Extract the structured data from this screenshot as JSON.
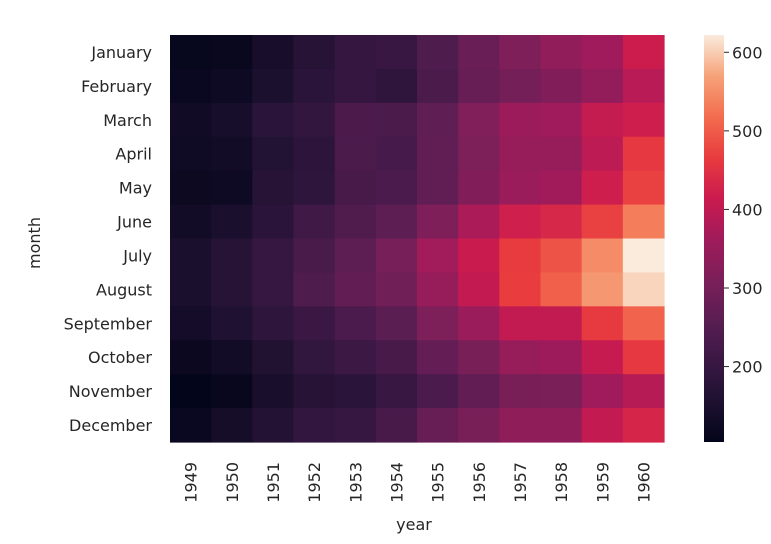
{
  "chart_data": {
    "type": "heatmap",
    "title": "",
    "xlabel": "year",
    "ylabel": "month",
    "x_categories": [
      "1949",
      "1950",
      "1951",
      "1952",
      "1953",
      "1954",
      "1955",
      "1956",
      "1957",
      "1958",
      "1959",
      "1960"
    ],
    "y_categories": [
      "January",
      "February",
      "March",
      "April",
      "May",
      "June",
      "July",
      "August",
      "September",
      "October",
      "November",
      "December"
    ],
    "values": [
      [
        112,
        115,
        145,
        171,
        196,
        204,
        242,
        284,
        315,
        340,
        360,
        417
      ],
      [
        118,
        126,
        150,
        180,
        196,
        188,
        233,
        277,
        301,
        318,
        342,
        391
      ],
      [
        132,
        141,
        178,
        193,
        236,
        235,
        267,
        317,
        356,
        362,
        406,
        419
      ],
      [
        129,
        135,
        163,
        181,
        235,
        227,
        269,
        313,
        348,
        348,
        396,
        461
      ],
      [
        121,
        125,
        172,
        183,
        229,
        234,
        270,
        318,
        355,
        363,
        420,
        472
      ],
      [
        135,
        149,
        178,
        218,
        243,
        264,
        315,
        374,
        422,
        435,
        472,
        535
      ],
      [
        148,
        170,
        199,
        230,
        264,
        302,
        364,
        413,
        465,
        491,
        548,
        622
      ],
      [
        148,
        170,
        199,
        242,
        272,
        293,
        347,
        405,
        467,
        505,
        559,
        606
      ],
      [
        136,
        158,
        184,
        209,
        237,
        259,
        312,
        355,
        404,
        404,
        463,
        508
      ],
      [
        119,
        133,
        162,
        191,
        211,
        229,
        274,
        306,
        347,
        359,
        407,
        461
      ],
      [
        104,
        114,
        146,
        172,
        180,
        203,
        237,
        271,
        305,
        310,
        362,
        390
      ],
      [
        118,
        140,
        166,
        194,
        201,
        229,
        278,
        306,
        336,
        337,
        405,
        432
      ]
    ],
    "colorbar": {
      "min": 104,
      "max": 622,
      "ticks": [
        "200",
        "300",
        "400",
        "500",
        "600"
      ],
      "colormap": "rocket"
    }
  }
}
